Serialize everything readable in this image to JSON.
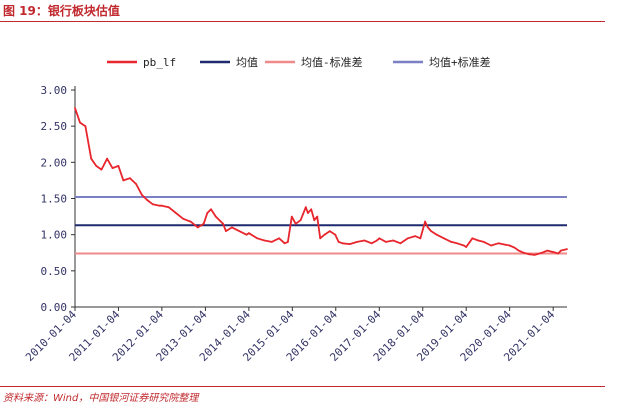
{
  "figure": {
    "title": "图 19：银行板块估值",
    "source": "资料来源：Wind，中国银河证券研究院整理"
  },
  "colors": {
    "accent": "#c0282d",
    "series_pb": "#e8262d",
    "mean": "#1f2a6e",
    "mean_minus_std": "#f08a8a",
    "mean_plus_std": "#7b7fc4"
  },
  "chart_data": {
    "type": "line",
    "title": "",
    "xlabel": "",
    "ylabel": "",
    "x_range": [
      "2010-01-04",
      "2021-04-30"
    ],
    "ylim": [
      0,
      3.0
    ],
    "yticks": [
      "0.00",
      "0.50",
      "1.00",
      "1.50",
      "2.00",
      "2.50",
      "3.00"
    ],
    "xticks": [
      "2010-01-04",
      "2011-01-04",
      "2012-01-04",
      "2013-01-04",
      "2014-01-04",
      "2015-01-04",
      "2016-01-04",
      "2017-01-04",
      "2018-01-04",
      "2019-01-04",
      "2020-01-04",
      "2021-01-04"
    ],
    "grid": false,
    "legend_position": "top",
    "series": [
      {
        "name": "pb_lf",
        "x": [
          "2010-01-04",
          "2010-02-15",
          "2010-04-01",
          "2010-05-20",
          "2010-07-01",
          "2010-08-15",
          "2010-10-01",
          "2010-11-15",
          "2011-01-04",
          "2011-02-15",
          "2011-04-10",
          "2011-06-01",
          "2011-07-20",
          "2011-09-01",
          "2011-10-20",
          "2011-12-15",
          "2012-01-04",
          "2012-03-01",
          "2012-05-01",
          "2012-07-01",
          "2012-09-01",
          "2012-11-01",
          "2012-12-20",
          "2013-01-20",
          "2013-02-20",
          "2013-04-01",
          "2013-06-01",
          "2013-06-25",
          "2013-08-15",
          "2013-10-15",
          "2013-12-15",
          "2014-01-04",
          "2014-03-15",
          "2014-05-15",
          "2014-07-15",
          "2014-09-15",
          "2014-10-31",
          "2014-11-28",
          "2014-12-31",
          "2015-02-01",
          "2015-03-15",
          "2015-04-27",
          "2015-05-15",
          "2015-06-12",
          "2015-07-08",
          "2015-08-01",
          "2015-08-26",
          "2015-10-01",
          "2015-11-15",
          "2015-12-31",
          "2016-01-28",
          "2016-03-01",
          "2016-05-01",
          "2016-07-01",
          "2016-09-01",
          "2016-11-01",
          "2016-12-15",
          "2017-01-04",
          "2017-03-01",
          "2017-05-01",
          "2017-07-01",
          "2017-09-01",
          "2017-11-01",
          "2017-12-15",
          "2018-01-24",
          "2018-02-15",
          "2018-03-15",
          "2018-05-01",
          "2018-07-01",
          "2018-09-01",
          "2018-10-19",
          "2018-12-15",
          "2019-01-04",
          "2019-02-25",
          "2019-04-15",
          "2019-06-01",
          "2019-08-01",
          "2019-10-01",
          "2019-12-01",
          "2020-01-04",
          "2020-02-15",
          "2020-03-20",
          "2020-05-01",
          "2020-06-15",
          "2020-08-01",
          "2020-10-01",
          "2020-11-15",
          "2021-01-04",
          "2021-02-15",
          "2021-03-10",
          "2021-04-30"
        ],
        "y": [
          2.75,
          2.55,
          2.5,
          2.05,
          1.95,
          1.9,
          2.05,
          1.92,
          1.95,
          1.75,
          1.78,
          1.7,
          1.55,
          1.48,
          1.42,
          1.4,
          1.4,
          1.38,
          1.3,
          1.22,
          1.18,
          1.1,
          1.15,
          1.3,
          1.35,
          1.25,
          1.15,
          1.05,
          1.1,
          1.05,
          1.0,
          1.02,
          0.95,
          0.92,
          0.9,
          0.95,
          0.88,
          0.9,
          1.25,
          1.15,
          1.2,
          1.38,
          1.3,
          1.35,
          1.2,
          1.25,
          0.95,
          1.0,
          1.05,
          1.0,
          0.9,
          0.88,
          0.87,
          0.9,
          0.92,
          0.88,
          0.92,
          0.95,
          0.9,
          0.92,
          0.88,
          0.95,
          0.98,
          0.95,
          1.18,
          1.1,
          1.05,
          1.0,
          0.95,
          0.9,
          0.88,
          0.85,
          0.83,
          0.95,
          0.92,
          0.9,
          0.85,
          0.88,
          0.86,
          0.85,
          0.82,
          0.78,
          0.75,
          0.73,
          0.72,
          0.75,
          0.78,
          0.76,
          0.74,
          0.78,
          0.8
        ]
      },
      {
        "name": "均值",
        "value": 1.13
      },
      {
        "name": "均值-标准差",
        "value": 0.74
      },
      {
        "name": "均值+标准差",
        "value": 1.52
      }
    ]
  }
}
